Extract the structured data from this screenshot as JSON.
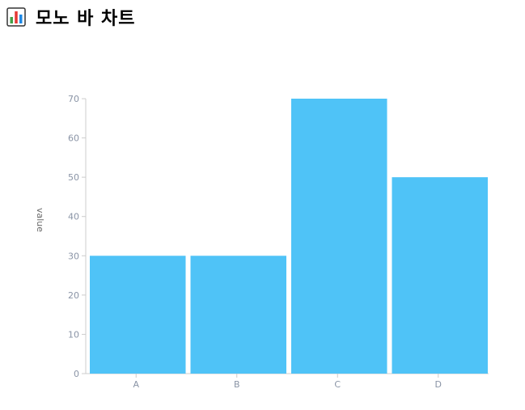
{
  "header": {
    "icon": "bar-chart-icon",
    "title": "모노 바 차트"
  },
  "colors": {
    "bar": "#4fc3f7",
    "axis": "#cccccc",
    "tick_text": "#8a94a6",
    "label_text": "#666666"
  },
  "chart_data": {
    "type": "bar",
    "categories": [
      "A",
      "B",
      "C",
      "D"
    ],
    "values": [
      30,
      30,
      70,
      50
    ],
    "title": "",
    "xlabel": "",
    "ylabel": "value",
    "ylim": [
      0,
      70
    ],
    "yticks": [
      0,
      10,
      20,
      30,
      40,
      50,
      60,
      70
    ],
    "grid": false,
    "legend": false
  }
}
